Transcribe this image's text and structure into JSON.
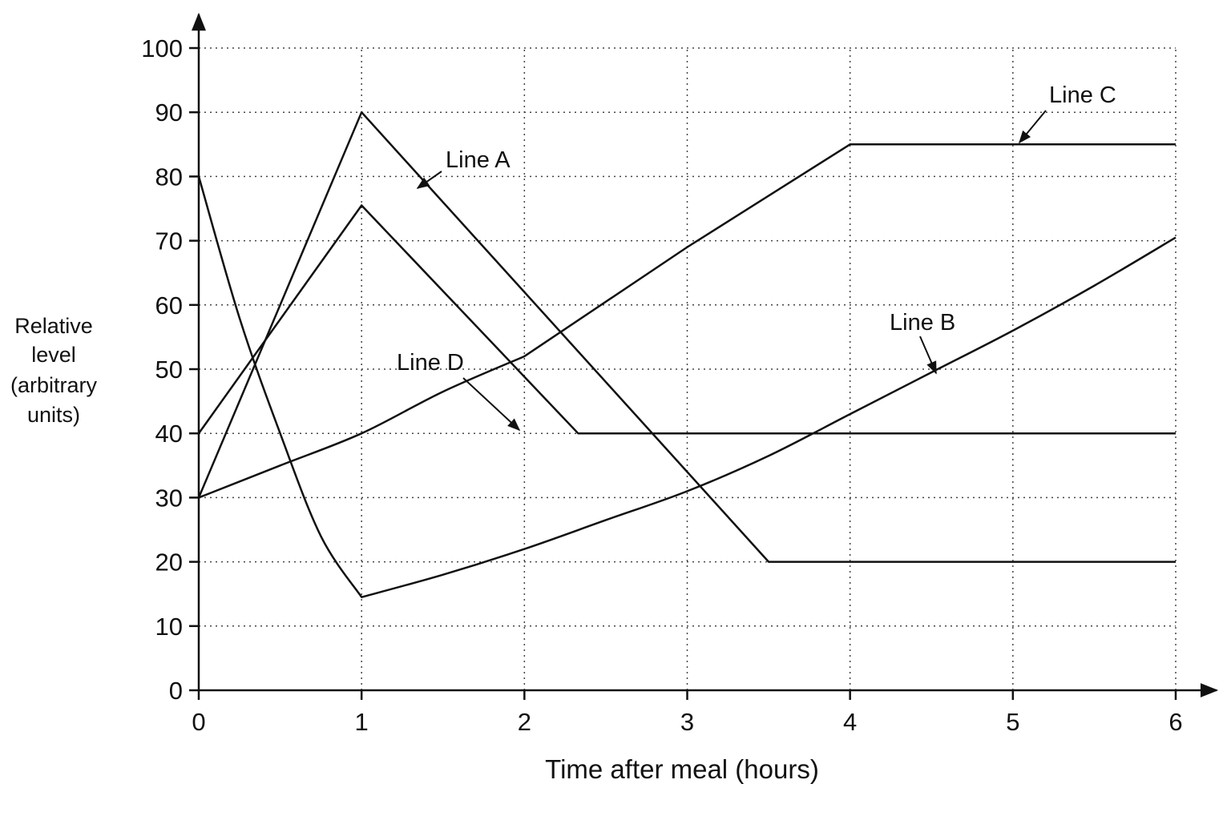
{
  "chart_data": {
    "type": "line",
    "xlabel": "Time after meal (hours)",
    "ylabel": [
      "Relative",
      "level",
      "(arbitrary",
      "units)"
    ],
    "xlim": [
      0,
      6
    ],
    "ylim": [
      0,
      100
    ],
    "xticks": [
      0,
      1,
      2,
      3,
      4,
      5,
      6
    ],
    "yticks": [
      0,
      10,
      20,
      30,
      40,
      50,
      60,
      70,
      80,
      90,
      100
    ],
    "grid": true,
    "series": [
      {
        "name": "Line A",
        "x": [
          0,
          1,
          3.5,
          6
        ],
        "y": [
          30,
          90,
          20,
          20
        ]
      },
      {
        "name": "Line B",
        "x": [
          0,
          0.25,
          0.5,
          0.75,
          1,
          1.5,
          2,
          2.5,
          3,
          3.5,
          4,
          4.5,
          5,
          5.5,
          6
        ],
        "y": [
          80,
          58,
          40,
          24,
          14.5,
          18,
          22,
          26.5,
          31,
          36.5,
          43,
          49.5,
          56,
          63,
          70.5
        ]
      },
      {
        "name": "Line C",
        "x": [
          0,
          0.5,
          1,
          1.5,
          2,
          3,
          4,
          6
        ],
        "y": [
          30,
          35,
          40,
          46.5,
          52,
          69,
          85,
          85
        ]
      },
      {
        "name": "Line D",
        "x": [
          0,
          1,
          2.33,
          6
        ],
        "y": [
          40,
          75.5,
          40,
          40
        ]
      }
    ],
    "annotations": [
      {
        "text": "Line A",
        "series": "Line A"
      },
      {
        "text": "Line B",
        "series": "Line B"
      },
      {
        "text": "Line C",
        "series": "Line C"
      },
      {
        "text": "Line D",
        "series": "Line D"
      }
    ]
  }
}
